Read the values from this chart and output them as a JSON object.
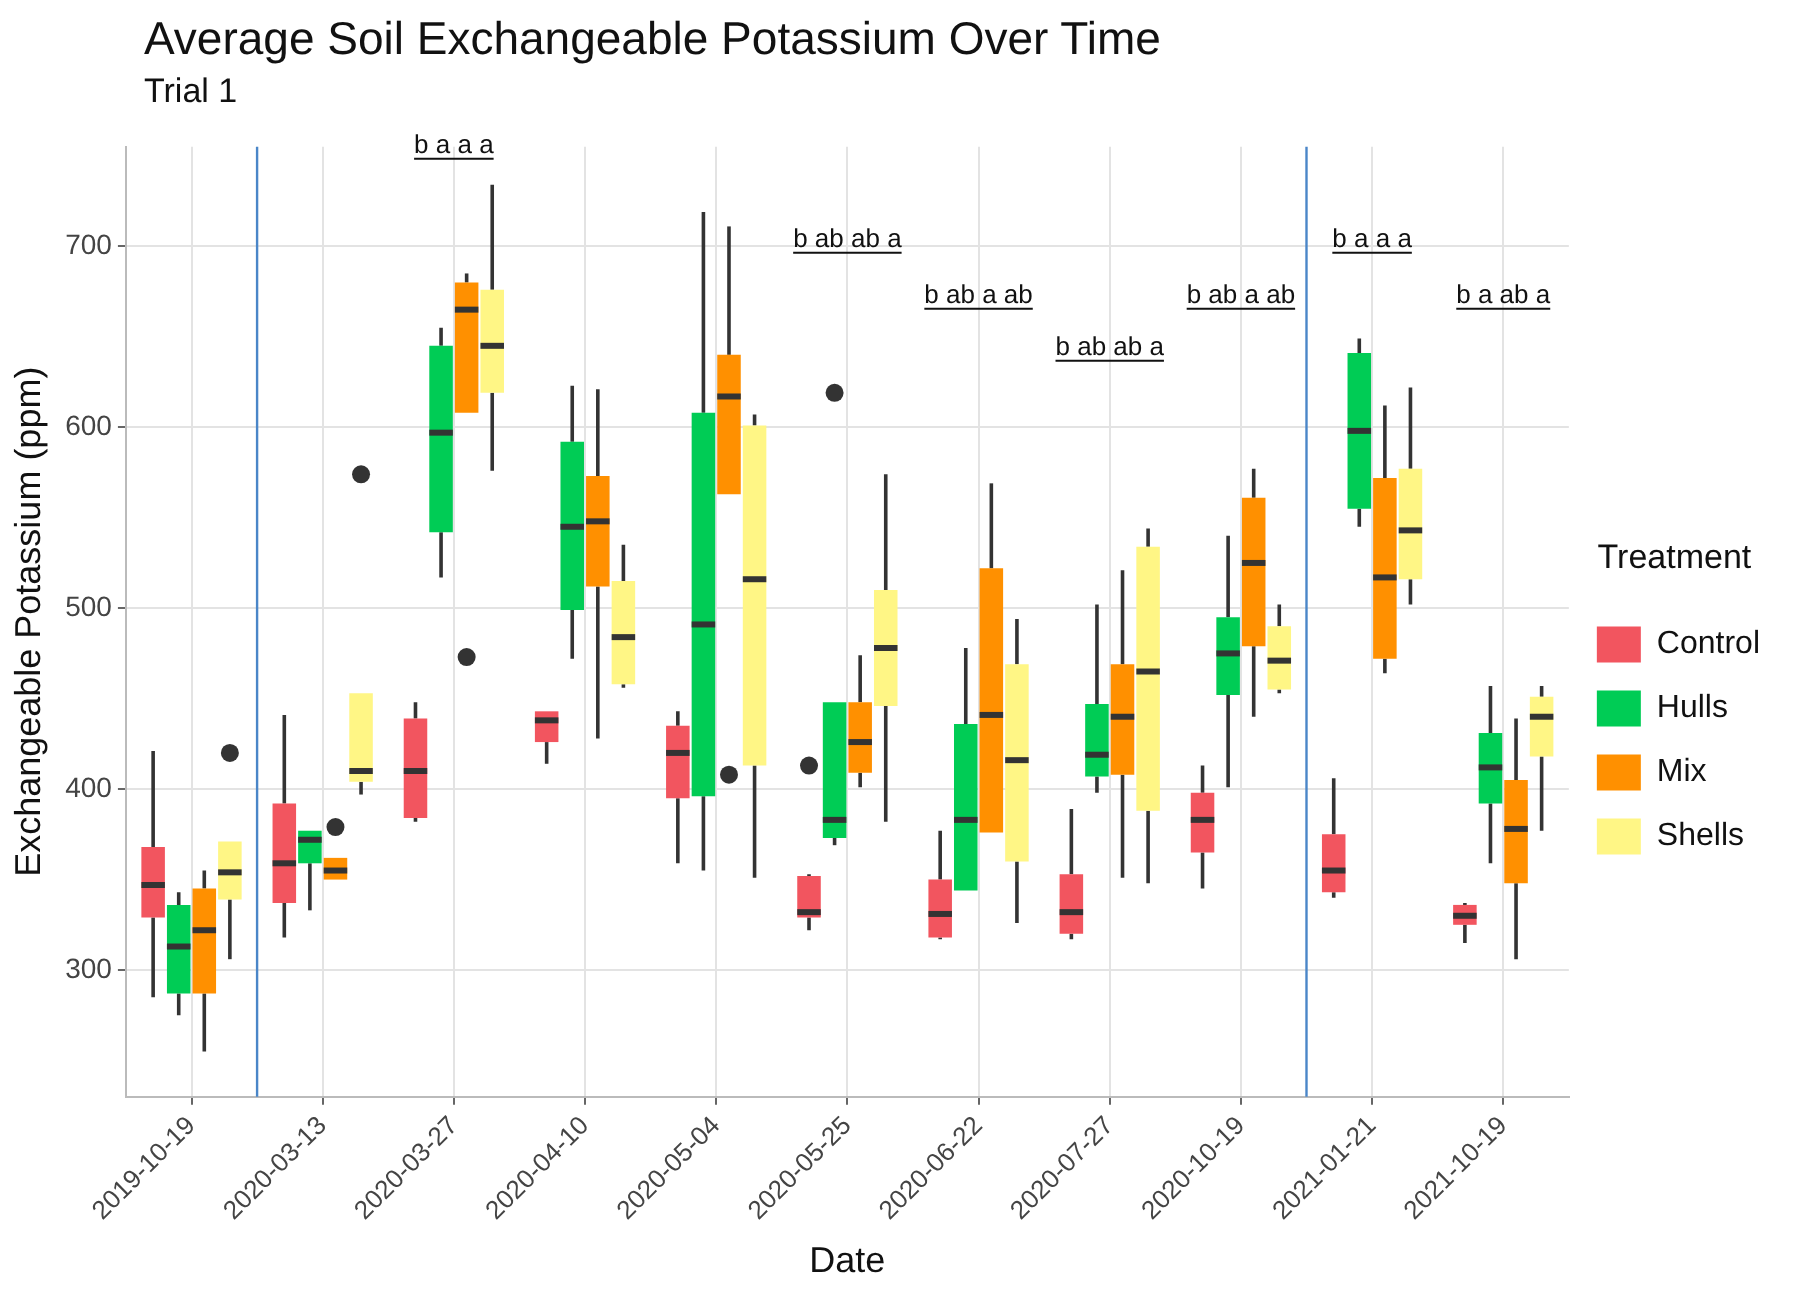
{
  "chart_data": {
    "type": "box",
    "title": "Average Soil Exchangeable Potassium Over Time",
    "subtitle": "Trial 1",
    "xlabel": "Date",
    "ylabel": "Exchangeable Potassium (ppm)",
    "legend_title": "Treatment",
    "legend": "right",
    "grid": true,
    "categories": [
      "2019-10-19",
      "2020-03-13",
      "2020-03-27",
      "2020-04-10",
      "2020-05-04",
      "2020-05-25",
      "2020-06-22",
      "2020-07-27",
      "2020-10-19",
      "2021-01-21",
      "2021-10-19"
    ],
    "ylim": [
      230,
      755
    ],
    "yticks": [
      300,
      400,
      500,
      600,
      700
    ],
    "series": [
      {
        "name": "Control",
        "color": "#f2555f",
        "boxes": [
          {
            "low": 285,
            "q1": 329,
            "median": 347,
            "q3": 368,
            "high": 421
          },
          {
            "low": 318,
            "q1": 337,
            "median": 359,
            "q3": 392,
            "high": 441
          },
          {
            "low": 382,
            "q1": 384,
            "median": 410,
            "q3": 439,
            "high": 448
          },
          {
            "low": 414,
            "q1": 426,
            "median": 438,
            "q3": 443,
            "high": 443
          },
          {
            "low": 359,
            "q1": 395,
            "median": 420,
            "q3": 435,
            "high": 443
          },
          {
            "low": 322,
            "q1": 329,
            "median": 332,
            "q3": 352,
            "high": 353,
            "outliers": [
              413
            ]
          },
          {
            "low": 317,
            "q1": 318,
            "median": 331,
            "q3": 350,
            "high": 377
          },
          {
            "low": 317,
            "q1": 320,
            "median": 332,
            "q3": 353,
            "high": 389
          },
          {
            "low": 345,
            "q1": 365,
            "median": 383,
            "q3": 398,
            "high": 413
          },
          {
            "low": 340,
            "q1": 343,
            "median": 355,
            "q3": 375,
            "high": 406
          },
          {
            "low": 315,
            "q1": 325,
            "median": 330,
            "q3": 336,
            "high": 337
          }
        ]
      },
      {
        "name": "Hulls",
        "color": "#00cc55",
        "boxes": [
          {
            "low": 275,
            "q1": 287,
            "median": 313,
            "q3": 336,
            "high": 343
          },
          {
            "low": 333,
            "q1": 359,
            "median": 372,
            "q3": 377,
            "high": 377
          },
          {
            "low": 517,
            "q1": 542,
            "median": 597,
            "q3": 645,
            "high": 655
          },
          {
            "low": 472,
            "q1": 499,
            "median": 545,
            "q3": 592,
            "high": 623
          },
          {
            "low": 355,
            "q1": 396,
            "median": 491,
            "q3": 608,
            "high": 719
          },
          {
            "low": 369,
            "q1": 373,
            "median": 383,
            "q3": 448,
            "high": 448,
            "outliers": [
              619
            ]
          },
          {
            "low": 344,
            "q1": 344,
            "median": 383,
            "q3": 436,
            "high": 478
          },
          {
            "low": 398,
            "q1": 407,
            "median": 419,
            "q3": 447,
            "high": 502
          },
          {
            "low": 401,
            "q1": 452,
            "median": 475,
            "q3": 495,
            "high": 540
          },
          {
            "low": 545,
            "q1": 555,
            "median": 598,
            "q3": 641,
            "high": 649
          },
          {
            "low": 359,
            "q1": 392,
            "median": 412,
            "q3": 431,
            "high": 457
          }
        ]
      },
      {
        "name": "Mix",
        "color": "#ff9000",
        "boxes": [
          {
            "low": 255,
            "q1": 287,
            "median": 322,
            "q3": 345,
            "high": 355
          },
          {
            "low": 350,
            "q1": 350,
            "median": 355,
            "q3": 362,
            "high": 362,
            "outliers": [
              379
            ]
          },
          {
            "low": 608,
            "q1": 608,
            "median": 665,
            "q3": 680,
            "high": 685,
            "outliers": [
              473
            ]
          },
          {
            "low": 428,
            "q1": 512,
            "median": 548,
            "q3": 573,
            "high": 621
          },
          {
            "low": 563,
            "q1": 563,
            "median": 617,
            "q3": 640,
            "high": 711,
            "outliers": [
              408
            ]
          },
          {
            "low": 401,
            "q1": 409,
            "median": 426,
            "q3": 448,
            "high": 474
          },
          {
            "low": 376,
            "q1": 376,
            "median": 441,
            "q3": 522,
            "high": 569
          },
          {
            "low": 351,
            "q1": 408,
            "median": 440,
            "q3": 469,
            "high": 521
          },
          {
            "low": 440,
            "q1": 479,
            "median": 525,
            "q3": 561,
            "high": 577
          },
          {
            "low": 464,
            "q1": 472,
            "median": 517,
            "q3": 572,
            "high": 612
          },
          {
            "low": 306,
            "q1": 348,
            "median": 378,
            "q3": 405,
            "high": 439
          }
        ]
      },
      {
        "name": "Shells",
        "color": "#fff685",
        "boxes": [
          {
            "low": 306,
            "q1": 339,
            "median": 354,
            "q3": 371,
            "high": 371,
            "outliers": [
              420
            ]
          },
          {
            "low": 397,
            "q1": 404,
            "median": 410,
            "q3": 453,
            "high": 453,
            "outliers": [
              574
            ]
          },
          {
            "low": 576,
            "q1": 619,
            "median": 645,
            "q3": 676,
            "high": 734
          },
          {
            "low": 456,
            "q1": 458,
            "median": 484,
            "q3": 515,
            "high": 535
          },
          {
            "low": 351,
            "q1": 413,
            "median": 516,
            "q3": 601,
            "high": 607
          },
          {
            "low": 382,
            "q1": 446,
            "median": 478,
            "q3": 510,
            "high": 574
          },
          {
            "low": 326,
            "q1": 360,
            "median": 416,
            "q3": 469,
            "high": 494
          },
          {
            "low": 348,
            "q1": 388,
            "median": 465,
            "q3": 534,
            "high": 544
          },
          {
            "low": 453,
            "q1": 455,
            "median": 471,
            "q3": 490,
            "high": 502
          },
          {
            "low": 502,
            "q1": 516,
            "median": 543,
            "q3": 577,
            "high": 622
          },
          {
            "low": 377,
            "q1": 418,
            "median": 440,
            "q3": 451,
            "high": 457
          }
        ]
      }
    ],
    "ref_lines": [
      {
        "axis": "x",
        "color": "#4a86c8"
      },
      {
        "axis": "x",
        "color": "#4a86c8"
      }
    ],
    "annotations": [
      "b a a a",
      "b ab ab a",
      "b ab a ab",
      "b ab ab a",
      "b ab a ab",
      "b a a a",
      "b a ab a"
    ]
  }
}
